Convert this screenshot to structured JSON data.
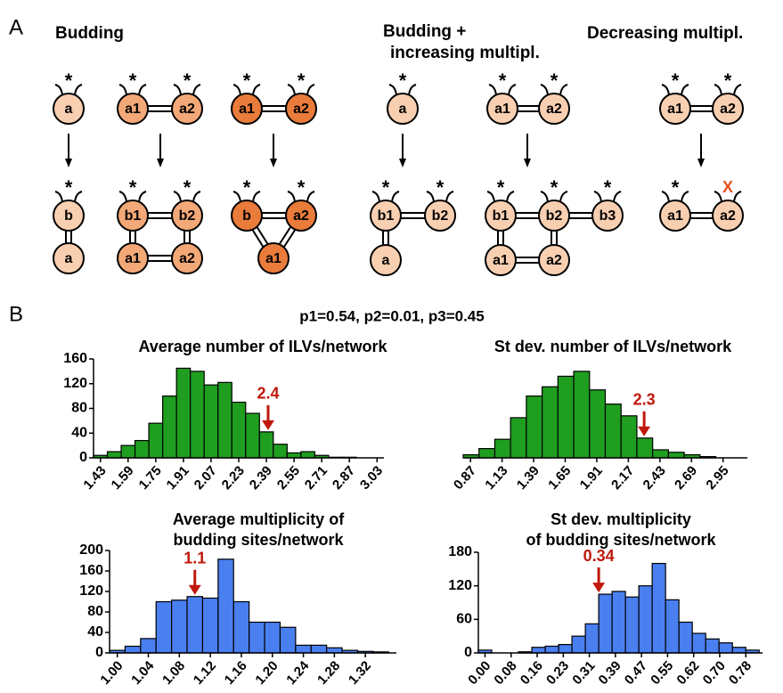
{
  "diagram": {
    "panel_label": "A",
    "marker": "*",
    "removed_marker": "X",
    "groups": [
      {
        "title": [
          "Budding"
        ]
      },
      {
        "title": [
          "Budding +",
          "increasing multipl."
        ]
      },
      {
        "title": [
          "Decreasing multipl."
        ]
      }
    ],
    "nodes": [
      "a",
      "b",
      "a",
      "a1",
      "a2",
      "b1",
      "b2",
      "a1",
      "a2",
      "a1",
      "a2",
      "b",
      "a2",
      "a1",
      "a",
      "b1",
      "b2",
      "a",
      "a1",
      "a2",
      "b1",
      "b2",
      "b3",
      "a1",
      "a2",
      "a1",
      "a2",
      "a1",
      "a2"
    ]
  },
  "panel_b": {
    "panel_label": "B",
    "subtitle": "p1=0.54, p2=0.01, p3=0.45"
  },
  "chart_data": [
    {
      "type": "histogram",
      "title": [
        "Average number of ILVs/network"
      ],
      "color": "#1f9e1f",
      "bins": [
        1.39,
        1.47,
        1.55,
        1.63,
        1.71,
        1.79,
        1.87,
        1.95,
        2.03,
        2.11,
        2.19,
        2.27,
        2.35,
        2.43,
        2.51,
        2.59,
        2.67,
        2.75,
        2.83,
        2.91,
        2.99
      ],
      "values": [
        4,
        10,
        20,
        28,
        56,
        100,
        145,
        140,
        118,
        122,
        90,
        72,
        42,
        22,
        8,
        10,
        4,
        1,
        1,
        0
      ],
      "xlim": [
        1.39,
        3.07
      ],
      "xticks": [
        1.43,
        1.59,
        1.75,
        1.91,
        2.07,
        2.23,
        2.39,
        2.55,
        2.71,
        2.87,
        3.03
      ],
      "ylim": [
        0,
        160
      ],
      "yticks": [
        0,
        40,
        80,
        120,
        160
      ],
      "annotation": 2.4
    },
    {
      "type": "histogram",
      "title": [
        "St dev. number of ILVs/network"
      ],
      "color": "#1f9e1f",
      "bins": [
        0.81,
        0.94,
        1.07,
        1.2,
        1.33,
        1.46,
        1.59,
        1.72,
        1.85,
        1.98,
        2.11,
        2.24,
        2.37,
        2.5,
        2.63,
        2.76,
        2.89
      ],
      "values": [
        5,
        15,
        30,
        65,
        100,
        115,
        132,
        140,
        110,
        87,
        68,
        32,
        13,
        9,
        5,
        2
      ],
      "xlim": [
        0.81,
        3.15
      ],
      "xticks": [
        0.87,
        1.13,
        1.39,
        1.65,
        1.91,
        2.17,
        2.43,
        2.69,
        2.95
      ],
      "ylim": [
        0,
        160
      ],
      "annotation": 2.3
    },
    {
      "type": "histogram",
      "title": [
        "Average multiplicity of",
        "budding sites/network"
      ],
      "color": "#4a7ff0",
      "bins": [
        0.99,
        1.01,
        1.03,
        1.05,
        1.07,
        1.09,
        1.11,
        1.13,
        1.15,
        1.17,
        1.19,
        1.21,
        1.23,
        1.25,
        1.27,
        1.29,
        1.31,
        1.33,
        1.35
      ],
      "values": [
        5,
        13,
        28,
        100,
        103,
        110,
        107,
        183,
        100,
        60,
        60,
        50,
        15,
        15,
        10,
        5,
        3,
        2
      ],
      "xlim": [
        0.99,
        1.36
      ],
      "xticks": [
        {
          "value": 1,
          "label": "1.00"
        },
        1.04,
        1.08,
        1.12,
        1.16,
        {
          "value": 1.2,
          "label": "1.20"
        },
        1.24,
        1.28,
        1.32
      ],
      "ylim": [
        0,
        200
      ],
      "yticks": [
        0,
        40,
        80,
        120,
        160,
        200
      ],
      "annotation": 1.1
    },
    {
      "type": "histogram",
      "title": [
        "St dev.  multiplicity",
        "of budding sites/network"
      ],
      "color": "#4a7ff0",
      "bins": [
        -0.02,
        0.02,
        0.06,
        0.1,
        0.14,
        0.18,
        0.22,
        0.26,
        0.3,
        0.34,
        0.38,
        0.42,
        0.46,
        0.5,
        0.54,
        0.58,
        0.62,
        0.66,
        0.7,
        0.74,
        0.78,
        0.82
      ],
      "values": [
        5,
        0,
        0,
        2,
        10,
        12,
        15,
        30,
        52,
        105,
        110,
        100,
        120,
        160,
        95,
        55,
        35,
        25,
        18,
        10,
        5
      ],
      "xlim": [
        -0.02,
        0.83
      ],
      "xticks": [
        {
          "value": 0,
          "label": "0.00"
        },
        {
          "value": 0.078,
          "label": "0.08"
        },
        {
          "value": 0.156,
          "label": "0.16"
        },
        {
          "value": 0.234,
          "label": "0.23"
        },
        {
          "value": 0.312,
          "label": "0.31"
        },
        0.39,
        {
          "value": 0.468,
          "label": "0.47"
        },
        {
          "value": 0.546,
          "label": "0.55"
        },
        {
          "value": 0.624,
          "label": "0.62"
        },
        {
          "value": 0.702,
          "label": "0.70"
        },
        0.78
      ],
      "ylim": [
        0,
        180
      ],
      "yticks": [
        0,
        60,
        120,
        180
      ],
      "annotation": 0.34
    }
  ]
}
